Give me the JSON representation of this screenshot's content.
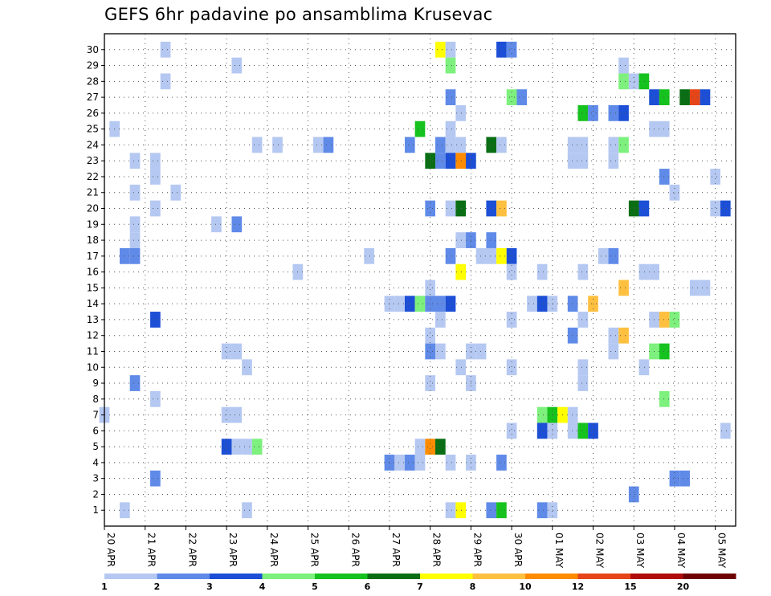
{
  "chart_data": {
    "type": "heatmap",
    "title": "GEFS 6hr padavine po ansamblima Krusevac",
    "xlabel": "",
    "ylabel": "",
    "x_range": [
      0,
      61
    ],
    "y_range": [
      0,
      30
    ],
    "x_ticks": [
      {
        "label": "20 APR",
        "step": 0
      },
      {
        "label": "21 APR",
        "step": 4
      },
      {
        "label": "22 APR",
        "step": 8
      },
      {
        "label": "23 APR",
        "step": 12
      },
      {
        "label": "24 APR",
        "step": 16
      },
      {
        "label": "25 APR",
        "step": 20
      },
      {
        "label": "26 APR",
        "step": 24
      },
      {
        "label": "27 APR",
        "step": 28
      },
      {
        "label": "28 APR",
        "step": 32
      },
      {
        "label": "29 APR",
        "step": 36
      },
      {
        "label": "30 APR",
        "step": 40
      },
      {
        "label": "01 MAY",
        "step": 44
      },
      {
        "label": "02 MAY",
        "step": 48
      },
      {
        "label": "03 MAY",
        "step": 52
      },
      {
        "label": "04 MAY",
        "step": 56
      },
      {
        "label": "05 MAY",
        "step": 60
      }
    ],
    "y_ticks": [
      1,
      2,
      3,
      4,
      5,
      6,
      7,
      8,
      9,
      10,
      11,
      12,
      13,
      14,
      15,
      16,
      17,
      18,
      19,
      20,
      21,
      22,
      23,
      24,
      25,
      26,
      27,
      28,
      29,
      30
    ],
    "grid": true,
    "color_scale": {
      "labels": [
        "1",
        "2",
        "3",
        "4",
        "5",
        "6",
        "7",
        "8",
        "10",
        "12",
        "15",
        "20"
      ],
      "colors": [
        "#b5c8f2",
        "#5f8ae8",
        "#1c4fd6",
        "#7df07d",
        "#16c21e",
        "#0a6e14",
        "#ffff00",
        "#ffc040",
        "#ff8c00",
        "#e64518",
        "#b00c0c",
        "#6e0000"
      ]
    },
    "cells": [
      [
        6,
        30,
        0
      ],
      [
        33,
        30,
        6
      ],
      [
        34,
        30,
        0
      ],
      [
        39,
        30,
        2
      ],
      [
        40,
        30,
        1
      ],
      [
        34,
        29,
        3
      ],
      [
        13,
        29,
        0
      ],
      [
        51,
        29,
        0
      ],
      [
        6,
        28,
        0
      ],
      [
        51,
        28,
        3
      ],
      [
        52,
        28,
        0
      ],
      [
        53,
        28,
        4
      ],
      [
        34,
        27,
        1
      ],
      [
        40,
        27,
        3
      ],
      [
        41,
        27,
        1
      ],
      [
        54,
        27,
        2
      ],
      [
        55,
        27,
        4
      ],
      [
        57,
        27,
        5
      ],
      [
        58,
        27,
        9
      ],
      [
        59,
        27,
        2
      ],
      [
        35,
        26,
        0
      ],
      [
        47,
        26,
        4
      ],
      [
        48,
        26,
        1
      ],
      [
        50,
        26,
        1
      ],
      [
        51,
        26,
        2
      ],
      [
        1,
        25,
        0
      ],
      [
        31,
        25,
        4
      ],
      [
        34,
        25,
        0
      ],
      [
        54,
        25,
        0
      ],
      [
        55,
        25,
        0
      ],
      [
        15,
        24,
        0
      ],
      [
        17,
        24,
        0
      ],
      [
        21,
        24,
        0
      ],
      [
        22,
        24,
        1
      ],
      [
        30,
        24,
        1
      ],
      [
        33,
        24,
        1
      ],
      [
        34,
        24,
        0
      ],
      [
        35,
        24,
        0
      ],
      [
        38,
        24,
        5
      ],
      [
        39,
        24,
        0
      ],
      [
        46,
        24,
        0
      ],
      [
        47,
        24,
        0
      ],
      [
        50,
        24,
        0
      ],
      [
        51,
        24,
        3
      ],
      [
        3,
        23,
        0
      ],
      [
        5,
        23,
        0
      ],
      [
        32,
        23,
        5
      ],
      [
        33,
        23,
        1
      ],
      [
        34,
        23,
        2
      ],
      [
        35,
        23,
        8
      ],
      [
        36,
        23,
        2
      ],
      [
        46,
        23,
        0
      ],
      [
        47,
        23,
        0
      ],
      [
        50,
        23,
        0
      ],
      [
        5,
        22,
        0
      ],
      [
        55,
        22,
        1
      ],
      [
        60,
        22,
        0
      ],
      [
        3,
        21,
        0
      ],
      [
        7,
        21,
        0
      ],
      [
        56,
        21,
        0
      ],
      [
        5,
        20,
        0
      ],
      [
        32,
        20,
        1
      ],
      [
        34,
        20,
        0
      ],
      [
        35,
        20,
        5
      ],
      [
        38,
        20,
        2
      ],
      [
        39,
        20,
        7
      ],
      [
        52,
        20,
        5
      ],
      [
        53,
        20,
        2
      ],
      [
        60,
        20,
        0
      ],
      [
        61,
        20,
        2
      ],
      [
        3,
        19,
        0
      ],
      [
        11,
        19,
        0
      ],
      [
        13,
        19,
        1
      ],
      [
        3,
        18,
        0
      ],
      [
        35,
        18,
        0
      ],
      [
        36,
        18,
        1
      ],
      [
        38,
        18,
        1
      ],
      [
        2,
        17,
        1
      ],
      [
        3,
        17,
        1
      ],
      [
        26,
        17,
        0
      ],
      [
        34,
        17,
        1
      ],
      [
        37,
        17,
        0
      ],
      [
        38,
        17,
        0
      ],
      [
        39,
        17,
        6
      ],
      [
        40,
        17,
        2
      ],
      [
        49,
        17,
        0
      ],
      [
        50,
        17,
        1
      ],
      [
        19,
        16,
        0
      ],
      [
        35,
        16,
        6
      ],
      [
        40,
        16,
        0
      ],
      [
        43,
        16,
        0
      ],
      [
        47,
        16,
        0
      ],
      [
        53,
        16,
        0
      ],
      [
        54,
        16,
        0
      ],
      [
        32,
        15,
        0
      ],
      [
        51,
        15,
        7
      ],
      [
        58,
        15,
        0
      ],
      [
        59,
        15,
        0
      ],
      [
        28,
        14,
        0
      ],
      [
        29,
        14,
        0
      ],
      [
        30,
        14,
        2
      ],
      [
        31,
        14,
        3
      ],
      [
        32,
        14,
        1
      ],
      [
        33,
        14,
        1
      ],
      [
        34,
        14,
        2
      ],
      [
        42,
        14,
        0
      ],
      [
        43,
        14,
        2
      ],
      [
        44,
        14,
        0
      ],
      [
        46,
        14,
        1
      ],
      [
        48,
        14,
        7
      ],
      [
        5,
        13,
        2
      ],
      [
        33,
        13,
        0
      ],
      [
        40,
        13,
        0
      ],
      [
        47,
        13,
        0
      ],
      [
        54,
        13,
        0
      ],
      [
        55,
        13,
        7
      ],
      [
        56,
        13,
        3
      ],
      [
        32,
        12,
        0
      ],
      [
        46,
        12,
        1
      ],
      [
        50,
        12,
        0
      ],
      [
        51,
        12,
        7
      ],
      [
        12,
        11,
        0
      ],
      [
        13,
        11,
        0
      ],
      [
        32,
        11,
        1
      ],
      [
        33,
        11,
        0
      ],
      [
        36,
        11,
        0
      ],
      [
        37,
        11,
        0
      ],
      [
        50,
        11,
        0
      ],
      [
        54,
        11,
        3
      ],
      [
        55,
        11,
        4
      ],
      [
        14,
        10,
        0
      ],
      [
        35,
        10,
        0
      ],
      [
        40,
        10,
        0
      ],
      [
        47,
        10,
        0
      ],
      [
        53,
        10,
        0
      ],
      [
        3,
        9,
        1
      ],
      [
        32,
        9,
        0
      ],
      [
        36,
        9,
        0
      ],
      [
        47,
        9,
        0
      ],
      [
        5,
        8,
        0
      ],
      [
        55,
        8,
        3
      ],
      [
        0,
        7,
        0
      ],
      [
        12,
        7,
        0
      ],
      [
        13,
        7,
        0
      ],
      [
        43,
        7,
        3
      ],
      [
        44,
        7,
        4
      ],
      [
        45,
        7,
        6
      ],
      [
        46,
        7,
        0
      ],
      [
        40,
        6,
        0
      ],
      [
        43,
        6,
        2
      ],
      [
        44,
        6,
        0
      ],
      [
        46,
        6,
        0
      ],
      [
        47,
        6,
        4
      ],
      [
        48,
        6,
        2
      ],
      [
        61,
        6,
        0
      ],
      [
        12,
        5,
        2
      ],
      [
        13,
        5,
        0
      ],
      [
        14,
        5,
        0
      ],
      [
        15,
        5,
        3
      ],
      [
        31,
        5,
        0
      ],
      [
        32,
        5,
        8
      ],
      [
        33,
        5,
        5
      ],
      [
        28,
        4,
        1
      ],
      [
        29,
        4,
        0
      ],
      [
        30,
        4,
        1
      ],
      [
        31,
        4,
        0
      ],
      [
        34,
        4,
        0
      ],
      [
        36,
        4,
        0
      ],
      [
        39,
        4,
        1
      ],
      [
        5,
        3,
        1
      ],
      [
        56,
        3,
        1
      ],
      [
        57,
        3,
        1
      ],
      [
        52,
        2,
        1
      ],
      [
        2,
        1,
        0
      ],
      [
        14,
        1,
        0
      ],
      [
        34,
        1,
        0
      ],
      [
        35,
        1,
        6
      ],
      [
        38,
        1,
        1
      ],
      [
        39,
        1,
        4
      ],
      [
        43,
        1,
        1
      ],
      [
        44,
        1,
        0
      ]
    ]
  }
}
